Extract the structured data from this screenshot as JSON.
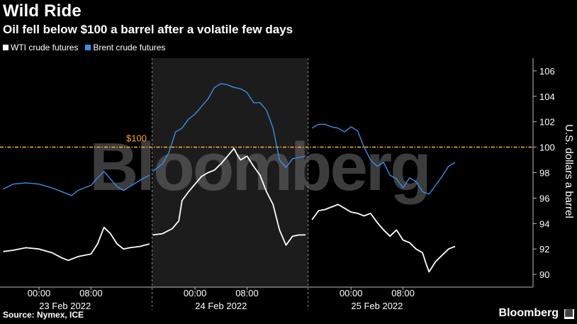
{
  "title": "Wild Ride",
  "subtitle": "Oil fell below $100 a barrel after a volatile few days",
  "source": "Source: Nymex, ICE",
  "brand": "Bloomberg",
  "watermark": "Bloomberg",
  "colors": {
    "wti": "#ffffff",
    "brent": "#3a8ee6",
    "ref": "#f2a33a",
    "highlight": "#1c1c1c"
  },
  "chart_data": {
    "type": "line",
    "ylabel": "U.S. dollars a barrel",
    "ylim": [
      89,
      107
    ],
    "yticks": [
      90,
      92,
      94,
      96,
      98,
      100,
      102,
      104,
      106
    ],
    "xlim": [
      -6,
      76
    ],
    "reference_line": {
      "value": 100,
      "label": "$100"
    },
    "sessions": [
      {
        "date": "23 Feb 2022",
        "start": -6,
        "end": 17.4
      },
      {
        "date": "24 Feb 2022",
        "start": 17.4,
        "end": 41.4,
        "highlight": true
      },
      {
        "date": "25 Feb 2022",
        "start": 41.4,
        "end": 76
      }
    ],
    "xticks": [
      {
        "x": 0,
        "label": "00:00"
      },
      {
        "x": 8,
        "label": "08:00"
      },
      {
        "x": 24,
        "label": "00:00"
      },
      {
        "x": 32,
        "label": "08:00"
      },
      {
        "x": 48,
        "label": "00:00"
      },
      {
        "x": 56,
        "label": "08:00"
      }
    ],
    "legend": [
      "WTI crude futures",
      "Brent crude futures"
    ],
    "series": [
      {
        "name": "WTI crude futures",
        "segments": [
          [
            [
              -5.5,
              91.8
            ],
            [
              -4,
              91.9
            ],
            [
              -2,
              92.1
            ],
            [
              0,
              92.0
            ],
            [
              2,
              91.7
            ],
            [
              3.5,
              91.3
            ],
            [
              4.5,
              91.1
            ],
            [
              6,
              91.4
            ],
            [
              8,
              91.6
            ],
            [
              9,
              92.4
            ],
            [
              10,
              93.7
            ],
            [
              11,
              93.2
            ],
            [
              12,
              92.4
            ],
            [
              13,
              92.0
            ],
            [
              14,
              92.1
            ],
            [
              15.5,
              92.2
            ],
            [
              17,
              92.4
            ]
          ],
          [
            [
              17.5,
              93.1
            ],
            [
              19,
              93.2
            ],
            [
              20.5,
              93.6
            ],
            [
              21.5,
              94.2
            ],
            [
              22,
              95.8
            ],
            [
              23,
              96.5
            ],
            [
              24,
              97.1
            ],
            [
              25,
              97.7
            ],
            [
              26,
              98.0
            ],
            [
              27,
              98.2
            ],
            [
              28,
              98.7
            ],
            [
              29,
              99.3
            ],
            [
              30,
              99.9
            ],
            [
              30.5,
              99.4
            ],
            [
              31,
              99.0
            ],
            [
              32,
              99.3
            ],
            [
              33,
              98.5
            ],
            [
              34,
              97.8
            ],
            [
              35,
              96.5
            ],
            [
              36,
              95.5
            ],
            [
              37,
              93.5
            ],
            [
              38,
              92.3
            ],
            [
              39,
              93.0
            ],
            [
              40,
              93.1
            ],
            [
              41,
              93.1
            ]
          ],
          [
            [
              42,
              94.3
            ],
            [
              43,
              95.0
            ],
            [
              44,
              95.1
            ],
            [
              45,
              95.3
            ],
            [
              46,
              95.5
            ],
            [
              47,
              95.2
            ],
            [
              48,
              94.9
            ],
            [
              49,
              94.8
            ],
            [
              50,
              94.6
            ],
            [
              51,
              94.8
            ],
            [
              52,
              94.1
            ],
            [
              53,
              93.5
            ],
            [
              54,
              93.0
            ],
            [
              55,
              93.5
            ],
            [
              56,
              92.7
            ],
            [
              57,
              92.5
            ],
            [
              58,
              92.0
            ],
            [
              59,
              91.7
            ],
            [
              59.5,
              90.9
            ],
            [
              60,
              90.2
            ],
            [
              61,
              91.0
            ],
            [
              62,
              91.5
            ],
            [
              63,
              92.0
            ],
            [
              64,
              92.2
            ]
          ]
        ]
      },
      {
        "name": "Brent crude futures",
        "segments": [
          [
            [
              -5.5,
              96.7
            ],
            [
              -4,
              97.1
            ],
            [
              -2,
              97.2
            ],
            [
              0,
              97.1
            ],
            [
              2,
              96.8
            ],
            [
              4,
              96.4
            ],
            [
              5,
              96.2
            ],
            [
              6,
              96.6
            ],
            [
              8,
              97.0
            ],
            [
              9,
              97.6
            ],
            [
              10,
              98.1
            ],
            [
              11,
              97.5
            ],
            [
              12,
              96.9
            ],
            [
              13,
              96.6
            ],
            [
              14,
              96.9
            ],
            [
              15.5,
              97.4
            ],
            [
              17,
              97.8
            ]
          ],
          [
            [
              17.5,
              98.1
            ],
            [
              19,
              98.7
            ],
            [
              20,
              99.6
            ],
            [
              21,
              101.2
            ],
            [
              22,
              101.5
            ],
            [
              23,
              102.2
            ],
            [
              24,
              102.6
            ],
            [
              25,
              103.2
            ],
            [
              26,
              103.8
            ],
            [
              27,
              104.7
            ],
            [
              28,
              105.0
            ],
            [
              29,
              104.9
            ],
            [
              30,
              104.7
            ],
            [
              31,
              104.6
            ],
            [
              32,
              104.3
            ],
            [
              33,
              103.5
            ],
            [
              34,
              103.5
            ],
            [
              35,
              102.9
            ],
            [
              36,
              101.5
            ],
            [
              37,
              99.0
            ],
            [
              38,
              98.4
            ],
            [
              39,
              99.1
            ],
            [
              40,
              99.2
            ],
            [
              41,
              99.3
            ]
          ],
          [
            [
              42,
              101.5
            ],
            [
              43,
              101.8
            ],
            [
              44,
              101.8
            ],
            [
              45,
              101.6
            ],
            [
              46,
              101.5
            ],
            [
              47,
              101.2
            ],
            [
              48,
              101.6
            ],
            [
              49,
              101.3
            ],
            [
              50,
              100.0
            ],
            [
              51,
              99.0
            ],
            [
              52,
              98.5
            ],
            [
              53,
              98.8
            ],
            [
              54,
              97.8
            ],
            [
              55,
              97.5
            ],
            [
              56,
              96.8
            ],
            [
              57,
              97.6
            ],
            [
              58,
              97.3
            ],
            [
              59,
              96.5
            ],
            [
              60,
              96.3
            ],
            [
              61,
              97.0
            ],
            [
              62,
              97.7
            ],
            [
              63,
              98.5
            ],
            [
              64,
              98.8
            ]
          ]
        ]
      }
    ]
  }
}
